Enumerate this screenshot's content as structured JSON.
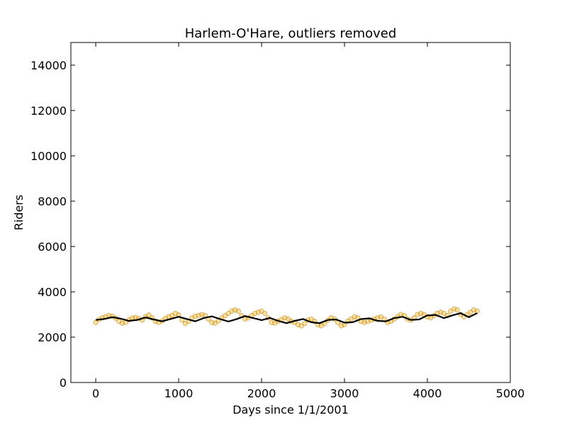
{
  "chart_data": {
    "type": "scatter",
    "title": "Harlem-O'Hare, outliers removed",
    "xlabel": "Days since 1/1/2001",
    "ylabel": "Riders",
    "xlim": [
      -300,
      5000
    ],
    "ylim": [
      0,
      15000
    ],
    "xticks": [
      0,
      1000,
      2000,
      3000,
      4000,
      5000
    ],
    "yticks": [
      0,
      2000,
      4000,
      6000,
      8000,
      10000,
      12000,
      14000
    ],
    "grid": false,
    "legend": "none",
    "series": [
      {
        "kind": "scatter",
        "color": "#ffa500",
        "edge_color": "#b8860b",
        "points_description": "daily ridership, sampled",
        "x": [
          0,
          40,
          80,
          120,
          160,
          200,
          240,
          280,
          320,
          360,
          400,
          440,
          480,
          520,
          560,
          600,
          640,
          680,
          720,
          760,
          800,
          840,
          880,
          920,
          960,
          1000,
          1040,
          1080,
          1120,
          1160,
          1200,
          1240,
          1280,
          1320,
          1360,
          1400,
          1440,
          1480,
          1520,
          1560,
          1600,
          1640,
          1680,
          1720,
          1760,
          1800,
          1840,
          1880,
          1920,
          1960,
          2000,
          2040,
          2080,
          2120,
          2160,
          2200,
          2240,
          2280,
          2320,
          2360,
          2400,
          2440,
          2480,
          2520,
          2560,
          2600,
          2640,
          2680,
          2720,
          2760,
          2800,
          2840,
          2880,
          2920,
          2960,
          3000,
          3040,
          3080,
          3120,
          3160,
          3200,
          3240,
          3280,
          3320,
          3360,
          3400,
          3440,
          3480,
          3520,
          3560,
          3600,
          3640,
          3680,
          3720,
          3760,
          3800,
          3840,
          3880,
          3920,
          3960,
          4000,
          4040,
          4080,
          4120,
          4160,
          4200,
          4240,
          4280,
          4320,
          4360,
          4400,
          4440,
          4480,
          4520,
          4560,
          4600
        ],
        "y": [
          2650,
          2780,
          2850,
          2900,
          2950,
          2920,
          2840,
          2700,
          2620,
          2650,
          2760,
          2840,
          2870,
          2820,
          2760,
          2900,
          2980,
          2850,
          2700,
          2650,
          2720,
          2830,
          2900,
          2960,
          3050,
          2980,
          2760,
          2600,
          2700,
          2850,
          2920,
          2960,
          3000,
          2950,
          2800,
          2650,
          2620,
          2720,
          2850,
          2950,
          3050,
          3150,
          3200,
          3150,
          2950,
          2800,
          2850,
          2950,
          3050,
          3100,
          3150,
          3050,
          2850,
          2650,
          2620,
          2700,
          2780,
          2850,
          2800,
          2700,
          2650,
          2550,
          2500,
          2600,
          2750,
          2800,
          2700,
          2550,
          2500,
          2600,
          2750,
          2850,
          2800,
          2650,
          2500,
          2550,
          2700,
          2800,
          2900,
          2850,
          2700,
          2650,
          2700,
          2750,
          2800,
          2850,
          2900,
          2800,
          2650,
          2700,
          2800,
          2900,
          3000,
          2950,
          2800,
          2750,
          2850,
          3000,
          3050,
          3000,
          2900,
          2850,
          2950,
          3050,
          3100,
          3050,
          2950,
          3150,
          3250,
          3200,
          3000,
          2900,
          3000,
          3100,
          3200,
          3150
        ]
      },
      {
        "kind": "line",
        "color": "#000000",
        "points_description": "smoothed trend",
        "x": [
          0,
          100,
          200,
          300,
          400,
          500,
          600,
          700,
          800,
          900,
          1000,
          1100,
          1200,
          1300,
          1400,
          1500,
          1600,
          1700,
          1800,
          1900,
          2000,
          2100,
          2200,
          2300,
          2400,
          2500,
          2600,
          2700,
          2800,
          2900,
          3000,
          3100,
          3200,
          3300,
          3400,
          3500,
          3600,
          3700,
          3800,
          3900,
          4000,
          4100,
          4200,
          4300,
          4400,
          4500,
          4600
        ],
        "y": [
          2760,
          2800,
          2880,
          2820,
          2720,
          2760,
          2870,
          2780,
          2700,
          2800,
          2900,
          2800,
          2700,
          2840,
          2920,
          2800,
          2690,
          2800,
          2930,
          2840,
          2750,
          2850,
          2720,
          2620,
          2720,
          2800,
          2660,
          2620,
          2760,
          2780,
          2640,
          2660,
          2800,
          2830,
          2720,
          2700,
          2840,
          2900,
          2760,
          2780,
          2960,
          2980,
          2840,
          2960,
          3060,
          2880,
          3060
        ]
      }
    ]
  }
}
